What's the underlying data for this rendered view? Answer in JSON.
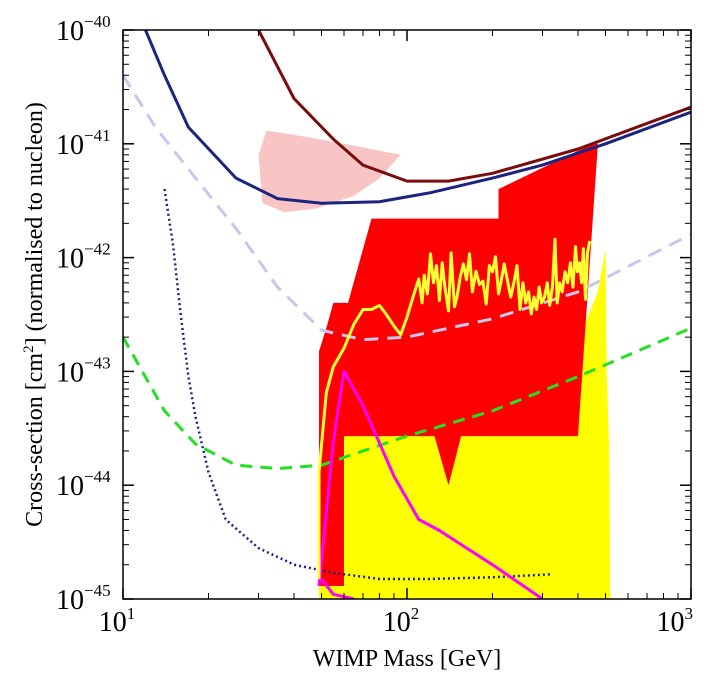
{
  "chart_data": {
    "type": "line",
    "xlabel": "WIMP Mass [GeV]",
    "ylabel_parts": [
      "Cross-section [cm",
      "2",
      "] (normalised to nucleon)"
    ],
    "x_scale": "log",
    "y_scale": "log",
    "xlim": [
      10,
      1000
    ],
    "ylim": [
      1e-45,
      1e-40
    ],
    "grid": false,
    "x_ticks": [
      {
        "value": 10,
        "base": "10",
        "exp": "1"
      },
      {
        "value": 100,
        "base": "10",
        "exp": "2"
      },
      {
        "value": 1000,
        "base": "10",
        "exp": "3"
      }
    ],
    "y_ticks": [
      {
        "value": 1e-45,
        "base": "10",
        "exp": "−45"
      },
      {
        "value": 1e-44,
        "base": "10",
        "exp": "−44"
      },
      {
        "value": 1e-43,
        "base": "10",
        "exp": "−43"
      },
      {
        "value": 1e-42,
        "base": "10",
        "exp": "−42"
      },
      {
        "value": 1e-41,
        "base": "10",
        "exp": "−41"
      },
      {
        "value": 1e-40,
        "base": "10",
        "exp": "−40"
      }
    ],
    "regions": [
      {
        "color": "#f9c4c4",
        "points": [
          [
            30,
            8e-42
          ],
          [
            32,
            1.3e-41
          ],
          [
            40,
            1.2e-41
          ],
          [
            60,
            1e-41
          ],
          [
            95,
            8e-42
          ],
          [
            80,
            5e-42
          ],
          [
            65,
            3.5e-42
          ],
          [
            48,
            2.7e-42
          ],
          [
            37,
            2.5e-42
          ],
          [
            31,
            3e-42
          ]
        ]
      },
      {
        "color": "#ffff00",
        "points": [
          [
            49,
            1e-45
          ],
          [
            49,
            1.4e-43
          ],
          [
            60,
            1e-43
          ],
          [
            65,
            4e-44
          ],
          [
            100,
            2.8e-44
          ],
          [
            180,
            2.7e-44
          ],
          [
            400,
            2.8e-44
          ],
          [
            420,
            2.5e-43
          ],
          [
            470,
            5e-43
          ],
          [
            500,
            1.2e-42
          ],
          [
            505,
            1e-43
          ],
          [
            515,
            2e-44
          ],
          [
            520,
            1e-45
          ]
        ]
      },
      {
        "color": "#ff0000",
        "points": [
          [
            49,
            1.3e-45
          ],
          [
            49,
            1.5e-43
          ],
          [
            52,
            2.4e-43
          ],
          [
            55,
            4e-43
          ],
          [
            62,
            4e-43
          ],
          [
            75,
            2.2e-42
          ],
          [
            210,
            2.2e-42
          ],
          [
            210,
            4e-42
          ],
          [
            450,
            1e-41
          ],
          [
            470,
            1e-41
          ],
          [
            400,
            2.7e-44
          ],
          [
            155,
            2.7e-44
          ],
          [
            140,
            1e-44
          ],
          [
            125,
            2.7e-44
          ],
          [
            60,
            2.7e-44
          ],
          [
            60,
            1.3e-45
          ]
        ]
      }
    ],
    "series": [
      {
        "color": "#7a0c0c",
        "dash": "",
        "points": [
          [
            30,
            1e-40
          ],
          [
            40,
            2.5e-41
          ],
          [
            55,
            1.1e-41
          ],
          [
            70,
            6.5e-42
          ],
          [
            100,
            4.7e-42
          ],
          [
            140,
            4.7e-42
          ],
          [
            200,
            5.5e-42
          ],
          [
            400,
            9e-42
          ],
          [
            1000,
            2.1e-41
          ]
        ]
      },
      {
        "color": "#1c2380",
        "dash": "",
        "points": [
          [
            12,
            1e-40
          ],
          [
            14,
            4e-41
          ],
          [
            17,
            1.4e-41
          ],
          [
            25,
            5e-42
          ],
          [
            35,
            3.3e-42
          ],
          [
            50,
            3e-42
          ],
          [
            80,
            3.1e-42
          ],
          [
            120,
            3.7e-42
          ],
          [
            200,
            5e-42
          ],
          [
            300,
            6.5e-42
          ],
          [
            500,
            1e-41
          ],
          [
            1000,
            1.9e-41
          ]
        ]
      },
      {
        "color": "#c3c8ef",
        "dash": "14 9",
        "points": [
          [
            10,
            4e-41
          ],
          [
            13,
            1.4e-41
          ],
          [
            18,
            5e-42
          ],
          [
            25,
            1.8e-42
          ],
          [
            35,
            5.5e-43
          ],
          [
            50,
            2.3e-43
          ],
          [
            70,
            1.9e-43
          ],
          [
            100,
            2e-43
          ],
          [
            200,
            2.9e-43
          ],
          [
            400,
            5e-43
          ],
          [
            1000,
            1.6e-42
          ]
        ]
      },
      {
        "color": "#22e022",
        "dash": "12 8",
        "points": [
          [
            10,
            2e-43
          ],
          [
            14,
            4.5e-44
          ],
          [
            18,
            2.3e-44
          ],
          [
            25,
            1.5e-44
          ],
          [
            35,
            1.4e-44
          ],
          [
            50,
            1.5e-44
          ],
          [
            70,
            2e-44
          ],
          [
            100,
            2.7e-44
          ],
          [
            200,
            4.5e-44
          ],
          [
            400,
            9e-44
          ],
          [
            1000,
            2.4e-43
          ]
        ]
      },
      {
        "color": "#1c2380",
        "dash": "2 3",
        "points": [
          [
            14,
            4e-42
          ],
          [
            15,
            1.3e-42
          ],
          [
            16,
            3e-43
          ],
          [
            17,
            9e-44
          ],
          [
            18,
            4e-44
          ],
          [
            20,
            1.3e-44
          ],
          [
            23,
            5e-45
          ],
          [
            30,
            2.8e-45
          ],
          [
            40,
            2e-45
          ],
          [
            55,
            1.7e-45
          ],
          [
            80,
            1.5e-45
          ],
          [
            120,
            1.5e-45
          ],
          [
            200,
            1.55e-45
          ],
          [
            320,
            1.65e-45
          ]
        ]
      },
      {
        "color": "#ff00ff",
        "dash": "",
        "points": [
          [
            49,
            1.3e-45
          ],
          [
            55,
            2.4e-44
          ],
          [
            60,
            1e-43
          ],
          [
            70,
            5e-44
          ],
          [
            90,
            1.2e-44
          ],
          [
            110,
            5e-45
          ],
          [
            130,
            4e-45
          ],
          [
            200,
            2e-45
          ],
          [
            300,
            1e-45
          ]
        ]
      },
      {
        "color": "#ff00ff",
        "dash": "",
        "points": [
          [
            50,
            1.5e-45
          ],
          [
            55,
            1.1e-45
          ],
          [
            65,
            1e-45
          ]
        ]
      },
      {
        "color": "#ffff33",
        "dash": "",
        "points": [
          [
            49,
            1.5e-45
          ],
          [
            49,
            1.3e-44
          ],
          [
            52,
            6.5e-44
          ],
          [
            55,
            1.1e-43
          ],
          [
            60,
            1.6e-43
          ],
          [
            65,
            2.6e-43
          ],
          [
            70,
            3.5e-43
          ],
          [
            75,
            3.5e-43
          ],
          [
            80,
            3.8e-43
          ],
          [
            85,
            3.1e-43
          ],
          [
            90,
            2.5e-43
          ],
          [
            95,
            2.1e-43
          ],
          [
            100,
            3e-43
          ],
          [
            105,
            4.5e-43
          ],
          [
            110,
            6.5e-43
          ],
          [
            113,
            4e-43
          ],
          [
            115,
            7e-43
          ],
          [
            118,
            4.8e-43
          ],
          [
            121,
            1.08e-42
          ],
          [
            124,
            6e-43
          ],
          [
            127,
            8.5e-43
          ],
          [
            130,
            4.2e-43
          ],
          [
            133,
            9e-43
          ],
          [
            136,
            5.5e-43
          ],
          [
            140,
            3.4e-43
          ],
          [
            143,
            1.1e-42
          ],
          [
            147,
            3.7e-43
          ],
          [
            150,
            4.5e-43
          ],
          [
            154,
            6.8e-43
          ],
          [
            158,
            8.8e-43
          ],
          [
            162,
            6.4e-43
          ],
          [
            166,
            1.08e-42
          ],
          [
            170,
            5e-43
          ],
          [
            175,
            7.6e-43
          ],
          [
            180,
            5.8e-43
          ],
          [
            185,
            6.2e-43
          ],
          [
            190,
            3.9e-43
          ],
          [
            195,
            8.5e-43
          ],
          [
            200,
            7.5e-43
          ],
          [
            205,
            1.02e-42
          ],
          [
            210,
            4.8e-43
          ],
          [
            215,
            6.4e-43
          ],
          [
            220,
            8.8e-43
          ],
          [
            226,
            6.2e-43
          ],
          [
            232,
            4.5e-43
          ],
          [
            238,
            6e-43
          ],
          [
            244,
            8.5e-43
          ],
          [
            250,
            3.5e-43
          ],
          [
            256,
            6e-43
          ],
          [
            262,
            4e-43
          ],
          [
            268,
            5e-43
          ],
          [
            274,
            3.2e-43
          ],
          [
            280,
            4.5e-43
          ],
          [
            286,
            3.5e-43
          ],
          [
            292,
            5.5e-43
          ],
          [
            298,
            4e-43
          ],
          [
            305,
            4.5e-43
          ],
          [
            312,
            6e-43
          ],
          [
            318,
            3.8e-43
          ],
          [
            325,
            5.5e-43
          ],
          [
            332,
            1.45e-42
          ],
          [
            338,
            4e-43
          ],
          [
            345,
            6e-43
          ],
          [
            352,
            5e-43
          ],
          [
            360,
            7.5e-43
          ],
          [
            368,
            6e-43
          ],
          [
            376,
            9e-43
          ],
          [
            384,
            5.5e-43
          ],
          [
            392,
            1.25e-42
          ],
          [
            398,
            7.5e-43
          ],
          [
            405,
            9e-43
          ],
          [
            412,
            6e-43
          ],
          [
            418,
            1.2e-42
          ],
          [
            425,
            4.3e-43
          ],
          [
            432,
            1.1e-42
          ],
          [
            440,
            1.4e-42
          ]
        ]
      }
    ]
  }
}
